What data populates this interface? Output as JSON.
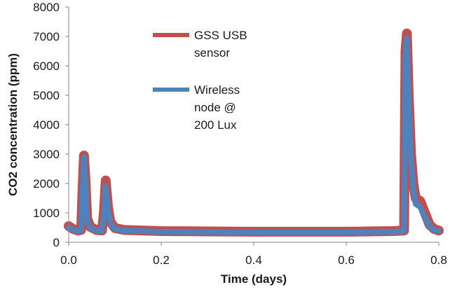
{
  "chart_data": {
    "type": "line",
    "title": "",
    "xlabel": "Time (days)",
    "ylabel": "CO2 concentration (ppm)",
    "xlim": [
      0.0,
      0.8
    ],
    "ylim": [
      0,
      8000
    ],
    "x_ticks": [
      0.0,
      0.2,
      0.4,
      0.6,
      0.8
    ],
    "x_tick_labels": [
      "0.0",
      "0.2",
      "0.4",
      "0.6",
      "0.8"
    ],
    "y_ticks": [
      0,
      1000,
      2000,
      3000,
      4000,
      5000,
      6000,
      7000,
      8000
    ],
    "y_tick_labels": [
      "0",
      "1000",
      "2000",
      "3000",
      "4000",
      "5000",
      "6000",
      "7000",
      "8000"
    ],
    "grid": false,
    "legend": "top-center",
    "series": [
      {
        "name": "GSS USB sensor",
        "color": "#c0504d",
        "x": [
          0.0,
          0.01,
          0.02,
          0.027,
          0.03,
          0.033,
          0.036,
          0.04,
          0.047,
          0.06,
          0.072,
          0.076,
          0.08,
          0.085,
          0.09,
          0.1,
          0.12,
          0.2,
          0.3,
          0.4,
          0.5,
          0.6,
          0.7,
          0.725,
          0.728,
          0.731,
          0.735,
          0.74,
          0.745,
          0.75,
          0.76,
          0.77,
          0.78,
          0.79,
          0.8
        ],
        "y": [
          550,
          450,
          400,
          420,
          1800,
          2950,
          2200,
          800,
          520,
          420,
          400,
          1000,
          2100,
          1200,
          700,
          480,
          420,
          380,
          370,
          360,
          360,
          360,
          380,
          400,
          6500,
          7100,
          5000,
          3000,
          2000,
          1500,
          1400,
          1000,
          600,
          450,
          400
        ]
      },
      {
        "name": "Wireless node @ 200 Lux",
        "color": "#4f81bd",
        "x": [
          0.0,
          0.01,
          0.02,
          0.027,
          0.03,
          0.033,
          0.036,
          0.04,
          0.047,
          0.06,
          0.072,
          0.076,
          0.08,
          0.085,
          0.09,
          0.1,
          0.12,
          0.2,
          0.3,
          0.4,
          0.5,
          0.6,
          0.7,
          0.725,
          0.728,
          0.731,
          0.735,
          0.74,
          0.745,
          0.75,
          0.76,
          0.77,
          0.78,
          0.79,
          0.8
        ],
        "y": [
          500,
          420,
          380,
          400,
          1700,
          2900,
          2100,
          750,
          480,
          400,
          380,
          950,
          1900,
          1100,
          650,
          450,
          400,
          360,
          350,
          340,
          340,
          340,
          360,
          380,
          6300,
          6950,
          4800,
          2800,
          1800,
          1300,
          1200,
          850,
          550,
          420,
          380
        ]
      }
    ]
  }
}
